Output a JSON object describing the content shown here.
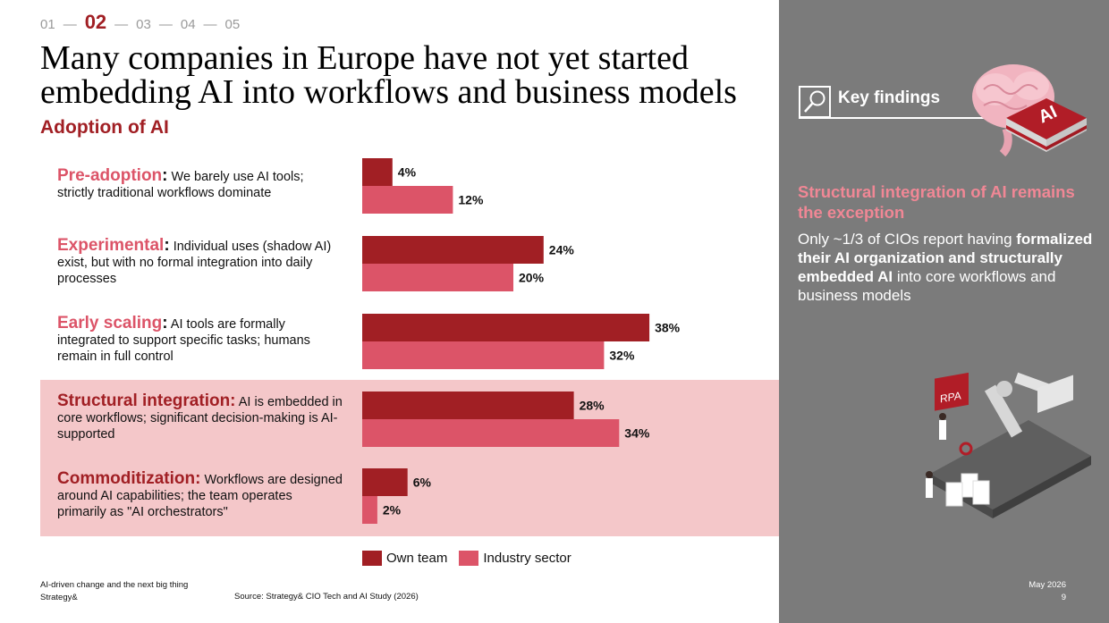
{
  "nav": {
    "steps": [
      "01",
      "02",
      "03",
      "04",
      "05"
    ],
    "active": "02"
  },
  "title": "Many companies in Europe have not yet started embedding AI into workflows and business models",
  "subtitle": "Adoption of AI",
  "categories": [
    {
      "label": "Pre-adoption",
      "description": "We barely use AI tools; strictly traditional workflows dominate"
    },
    {
      "label": "Experimental",
      "description": "Individual uses (shadow AI) exist, but with no formal integration into daily processes"
    },
    {
      "label": "Early scaling",
      "description": "AI tools are formally integrated to support specific tasks; humans remain in full control"
    },
    {
      "label": "Structural integration:",
      "description": "AI is embedded in core workflows; significant decision-making is AI-supported"
    },
    {
      "label": "Commoditization:",
      "description": "Workflows are designed around AI capabilities; the team operates primarily as \"AI orchestrators\""
    }
  ],
  "chart_data": {
    "type": "bar",
    "orientation": "horizontal",
    "categories": [
      "Pre-adoption",
      "Experimental",
      "Early scaling",
      "Structural integration",
      "Commoditization"
    ],
    "series": [
      {
        "name": "Own team",
        "values": [
          4,
          24,
          38,
          28,
          6
        ],
        "color": "#a11f24"
      },
      {
        "name": "Industry sector",
        "values": [
          12,
          20,
          32,
          34,
          2
        ],
        "color": "#dc5468"
      }
    ],
    "value_labels": [
      [
        "4%",
        "24%",
        "38%",
        "28%",
        "6%"
      ],
      [
        "12%",
        "20%",
        "32%",
        "34%",
        "2%"
      ]
    ],
    "highlighted_category": "Structural integration",
    "legend_position": "bottom"
  },
  "footer": {
    "line1": "AI-driven change and the next big thing",
    "line2": "Strategy&",
    "source": "Source: Strategy& CIO Tech and AI Study (2026)",
    "date": "May 2026",
    "page": "9"
  },
  "panel": {
    "heading": "Key findings",
    "icon": "magnifier-icon",
    "badge_text": "AI",
    "rpa_text": "RPA",
    "finding_title": "Structural integration of AI remains the exception",
    "finding_intro": "Only ~1/3 of CIOs report having ",
    "finding_bold": "formalized their AI organization and structurally embedded AI",
    "finding_outro": " into core workflows and business models",
    "colors": {
      "panel": "#7b7b7b",
      "accent": "#f08795",
      "brand": "#a11f24"
    }
  }
}
